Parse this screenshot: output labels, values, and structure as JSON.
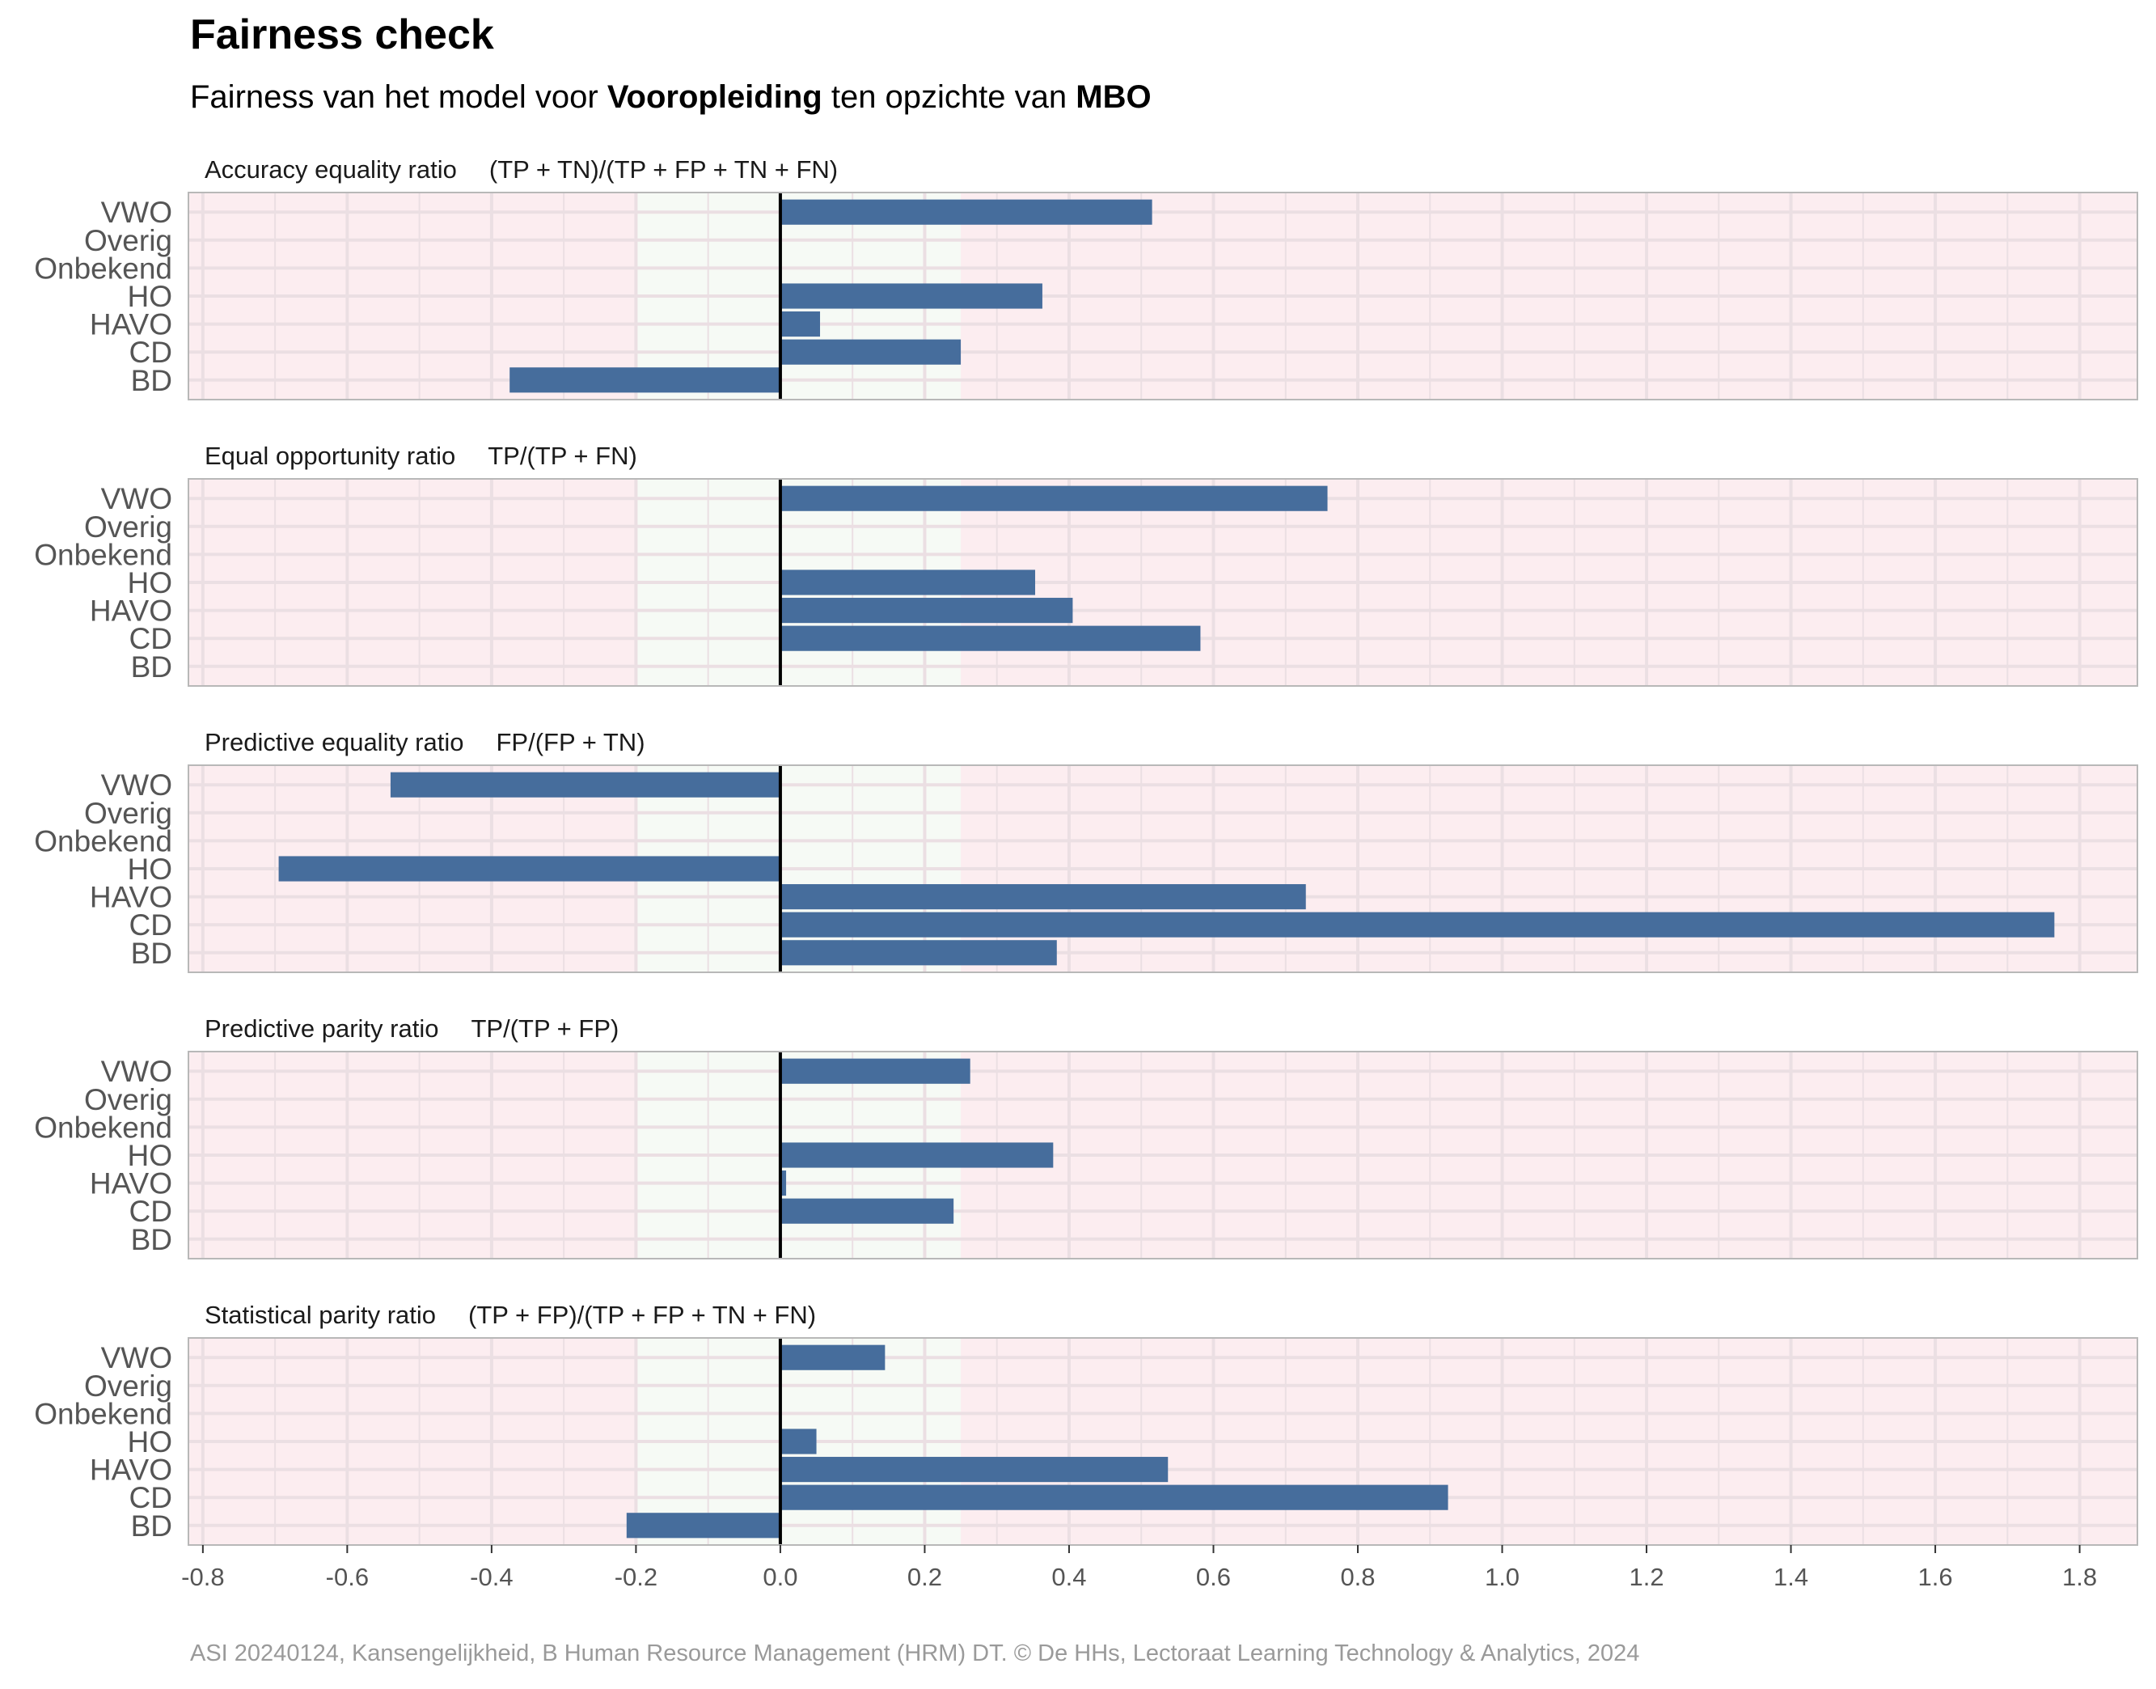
{
  "header": {
    "title": "Fairness check",
    "subtitle_parts": [
      {
        "text": "Fairness van het model voor ",
        "bold": false
      },
      {
        "text": "Vooropleiding",
        "bold": true
      },
      {
        "text": " ten opzichte van ",
        "bold": false
      },
      {
        "text": "MBO",
        "bold": true
      }
    ]
  },
  "caption": "ASI 20240124, Kansengelijkheid, B Human Resource Management (HRM) DT. © De HHs, Lectoraat Learning Technology & Analytics, 2024",
  "colors": {
    "bar": "#466d9c",
    "fair_band": "#f6faf5",
    "unfair_band": "#fcedf0",
    "grid": "#ebdfe3",
    "zero_line": "#000000",
    "panel_border": "#b8b8b8",
    "tick_text": "#555555",
    "caption_text": "#9a9a9a"
  },
  "chart_data": {
    "type": "bar",
    "orientation": "horizontal",
    "categories": [
      "VWO",
      "Overig",
      "Onbekend",
      "HO",
      "HAVO",
      "CD",
      "BD"
    ],
    "xlim": [
      -0.82,
      1.88
    ],
    "x_ticks": [
      -0.8,
      -0.6,
      -0.4,
      -0.2,
      0.0,
      0.2,
      0.4,
      0.6,
      0.8,
      1.0,
      1.2,
      1.4,
      1.6,
      1.8
    ],
    "x_tick_labels": [
      "-0.8",
      "-0.6",
      "-0.4",
      "-0.2",
      "0.0",
      "0.2",
      "0.4",
      "0.6",
      "0.8",
      "1.0",
      "1.2",
      "1.4",
      "1.6",
      "1.8"
    ],
    "fair_band": [
      -0.2,
      0.25
    ],
    "grid": true,
    "panels": [
      {
        "title": "Accuracy equality ratio",
        "formula": "(TP + TN)/(TP + FP + TN + FN)",
        "values": [
          0.515,
          null,
          null,
          0.363,
          0.055,
          0.25,
          -0.375
        ]
      },
      {
        "title": "Equal opportunity ratio",
        "formula": "TP/(TP + FN)",
        "values": [
          0.758,
          null,
          null,
          0.353,
          0.405,
          0.582,
          null
        ]
      },
      {
        "title": "Predictive equality ratio",
        "formula": "FP/(FP + TN)",
        "values": [
          -0.54,
          null,
          null,
          -0.695,
          0.728,
          1.765,
          0.383
        ]
      },
      {
        "title": "Predictive parity ratio",
        "formula": "TP/(TP + FP)",
        "values": [
          0.263,
          null,
          null,
          0.378,
          0.008,
          0.24,
          null
        ]
      },
      {
        "title": "Statistical parity ratio",
        "formula": "(TP + FP)/(TP + FP + TN + FN)",
        "values": [
          0.145,
          null,
          null,
          0.05,
          0.537,
          0.925,
          -0.213
        ]
      }
    ]
  }
}
